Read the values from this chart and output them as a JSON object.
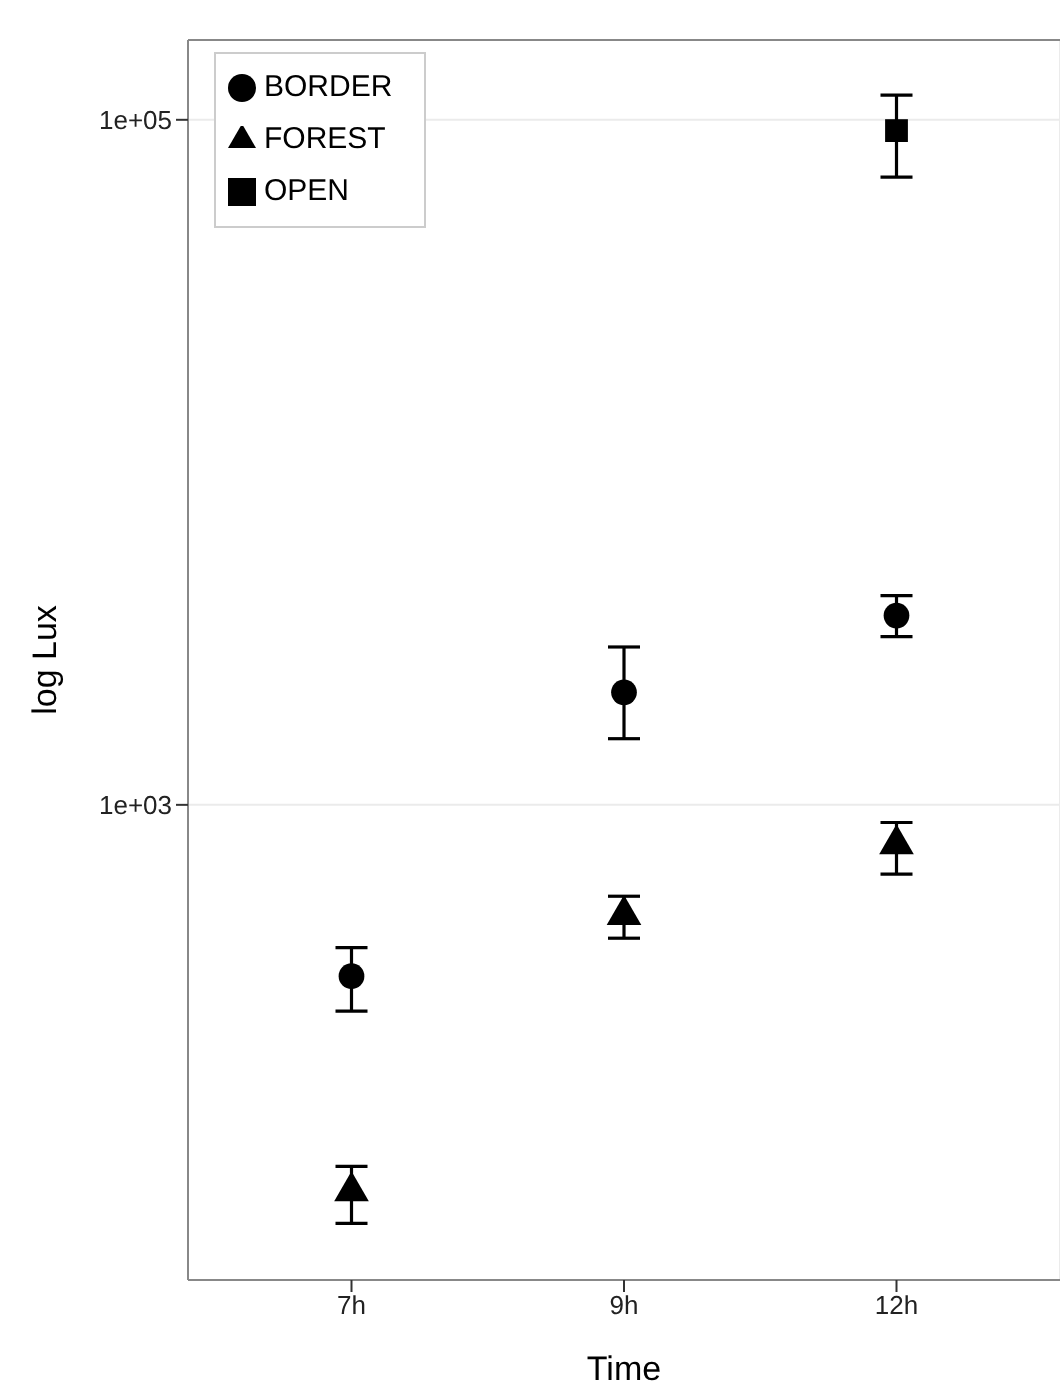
{
  "chart_data": {
    "type": "scatter",
    "xlabel": "Time",
    "ylabel": "log Lux",
    "categories": [
      "7h",
      "9h",
      "12h"
    ],
    "log": "y",
    "ylim": [
      41,
      171000
    ],
    "yticks": [
      {
        "value": 1000,
        "label": "1e+03"
      },
      {
        "value": 100000,
        "label": "1e+05"
      }
    ],
    "grid": true,
    "legend": "top left",
    "series": [
      {
        "name": "BORDER",
        "color": "#000000",
        "marker": "circle",
        "values": [
          316,
          2130,
          3570
        ],
        "errors": [
          [
            250,
            383
          ],
          [
            1560,
            2890
          ],
          [
            3100,
            4080
          ]
        ]
      },
      {
        "name": "FOREST",
        "color": "#000000",
        "marker": "triangle",
        "values": [
          74.5,
          477,
          767
        ],
        "errors": [
          [
            60,
            88
          ],
          [
            408,
            541
          ],
          [
            628,
            888
          ]
        ]
      },
      {
        "name": "OPEN",
        "color": "#000000",
        "marker": "square",
        "values": [
          null,
          null,
          93000
        ],
        "errors": [
          null,
          null,
          [
            68000,
            118000
          ]
        ]
      }
    ]
  }
}
